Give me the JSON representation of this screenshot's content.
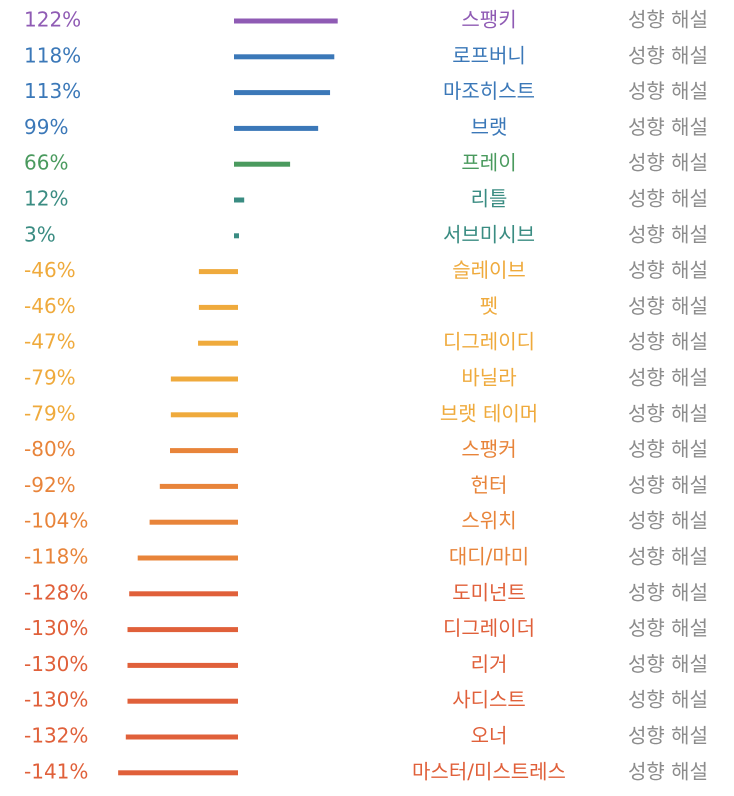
{
  "chart_data": {
    "type": "bar",
    "orientation": "horizontal",
    "value_suffix": "%",
    "grid": false,
    "categories": [
      "스팽키",
      "로프버니",
      "마조히스트",
      "브랫",
      "프레이",
      "리틀",
      "서브미시브",
      "슬레이브",
      "펫",
      "디그레이디",
      "바닐라",
      "브랫 테이머",
      "스팽커",
      "헌터",
      "스위치",
      "대디/마미",
      "도미넌트",
      "디그레이더",
      "리거",
      "사디스트",
      "오너",
      "마스터/미스트레스"
    ],
    "values": [
      122,
      118,
      113,
      99,
      66,
      12,
      3,
      -46,
      -46,
      -47,
      -79,
      -79,
      -80,
      -92,
      -104,
      -118,
      -128,
      -130,
      -130,
      -130,
      -132,
      -141
    ],
    "value_labels": [
      "122%",
      "118%",
      "113%",
      "99%",
      "66%",
      "12%",
      "3%",
      "-46%",
      "-46%",
      "-47%",
      "-79%",
      "-79%",
      "-80%",
      "-92%",
      "-104%",
      "-118%",
      "-128%",
      "-130%",
      "-130%",
      "-130%",
      "-132%",
      "-141%"
    ],
    "colors": [
      "#8f5bb4",
      "#3b78b8",
      "#3b78b8",
      "#3b78b8",
      "#4a9a5e",
      "#3a8c82",
      "#3a8c82",
      "#efaa3c",
      "#efaa3c",
      "#efaa3c",
      "#efaa3c",
      "#efaa3c",
      "#e8843a",
      "#e8843a",
      "#e8843a",
      "#e8843a",
      "#e0603a",
      "#e0603a",
      "#e0603a",
      "#e0603a",
      "#e0603a",
      "#e0603a"
    ],
    "row_action_label": "성향 해설"
  }
}
